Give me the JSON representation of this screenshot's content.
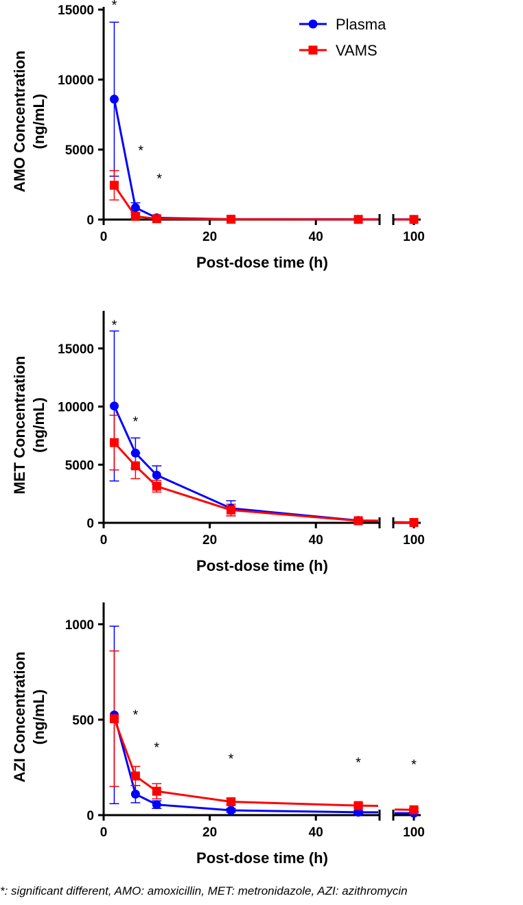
{
  "chart_data": [
    {
      "type": "line",
      "ylabel": [
        "AMO Concentration",
        "(ng/mL)"
      ],
      "xlabel": "Post-dose time (h)",
      "ylim": [
        0,
        15000
      ],
      "yticks": [
        0,
        5000,
        10000,
        15000
      ],
      "xticks": [
        0,
        20,
        40,
        100
      ],
      "x_break": [
        52,
        97
      ],
      "x": [
        2,
        6,
        10,
        24,
        48,
        100
      ],
      "series": [
        {
          "name": "Plasma",
          "color": "#0000ff",
          "marker": "circle",
          "values": [
            8600,
            850,
            120,
            25,
            15,
            10
          ],
          "errors": [
            5500,
            350,
            50,
            15,
            10,
            5
          ]
        },
        {
          "name": "VAMS",
          "color": "#ff0000",
          "marker": "square",
          "values": [
            2450,
            230,
            60,
            20,
            12,
            8
          ],
          "errors": [
            1050,
            100,
            30,
            10,
            8,
            5
          ]
        }
      ],
      "significance": [
        {
          "x": 2,
          "y": 15400
        },
        {
          "x": 7,
          "y": 5000
        },
        {
          "x": 10.5,
          "y": 3000
        }
      ],
      "legend": true
    },
    {
      "type": "line",
      "ylabel": [
        "MET Concentration",
        "(ng/mL)"
      ],
      "xlabel": "Post-dose time (h)",
      "ylim": [
        0,
        18000
      ],
      "yticks": [
        0,
        5000,
        10000,
        15000
      ],
      "xticks": [
        0,
        20,
        40,
        100
      ],
      "x_break": [
        52,
        97
      ],
      "x": [
        2,
        6,
        10,
        24,
        48,
        100
      ],
      "series": [
        {
          "name": "Plasma",
          "color": "#0000ff",
          "marker": "circle",
          "values": [
            10050,
            6000,
            4100,
            1250,
            200,
            40
          ],
          "errors": [
            6450,
            1300,
            800,
            650,
            150,
            40
          ]
        },
        {
          "name": "VAMS",
          "color": "#ff0000",
          "marker": "square",
          "values": [
            6900,
            4900,
            3150,
            1100,
            180,
            30
          ],
          "errors": [
            2350,
            1100,
            500,
            500,
            120,
            25
          ]
        }
      ],
      "significance": [
        {
          "x": 2,
          "y": 17100
        },
        {
          "x": 6,
          "y": 8800
        }
      ]
    },
    {
      "type": "line",
      "ylabel": [
        "AZI Concentration",
        "(ng/mL)"
      ],
      "xlabel": "Post-dose time (h)",
      "ylim": [
        0,
        1100
      ],
      "yticks": [
        0,
        500,
        1000
      ],
      "xticks": [
        0,
        20,
        40,
        100
      ],
      "x_break": [
        52,
        97
      ],
      "x": [
        2,
        6,
        10,
        24,
        48,
        100
      ],
      "series": [
        {
          "name": "Plasma",
          "color": "#0000ff",
          "marker": "circle",
          "values": [
            525,
            110,
            55,
            25,
            15,
            10
          ],
          "errors": [
            465,
            45,
            20,
            10,
            8,
            5
          ]
        },
        {
          "name": "VAMS",
          "color": "#ff0000",
          "marker": "square",
          "values": [
            505,
            205,
            125,
            70,
            50,
            28
          ],
          "errors": [
            355,
            50,
            40,
            15,
            12,
            8
          ]
        }
      ],
      "significance": [
        {
          "x": 6,
          "y": 530
        },
        {
          "x": 10,
          "y": 360
        },
        {
          "x": 24,
          "y": 300
        },
        {
          "x": 48,
          "y": 280
        },
        {
          "x": 100,
          "y": 270
        }
      ]
    }
  ],
  "significance_symbol": "*",
  "footnote": "*: significant different, AMO: amoxicillin, MET: metronidazole, AZI: azithromycin"
}
